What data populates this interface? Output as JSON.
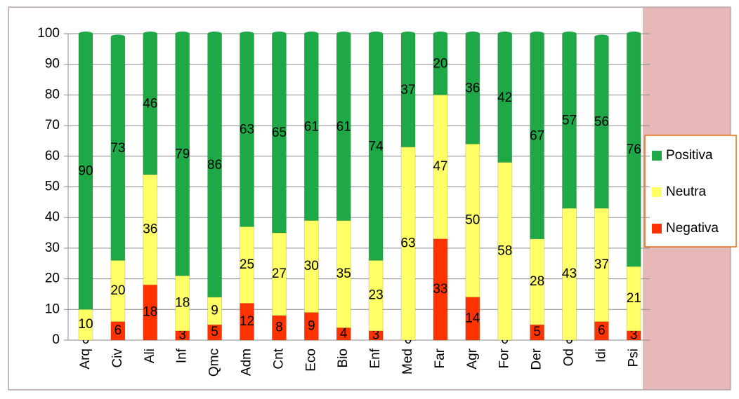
{
  "chart_data": {
    "type": "stacked_bar",
    "categories": [
      "Arq",
      "Civ",
      "Ali",
      "Inf",
      "Qmc",
      "Adm",
      "Cnt",
      "Eco",
      "Bio",
      "Enf",
      "Med",
      "Far",
      "Agr",
      "For",
      "Der",
      "Od",
      "Idi",
      "Psi"
    ],
    "series": [
      {
        "name": "Positiva",
        "color": "#1fa846",
        "values": [
          90,
          73,
          46,
          79,
          86,
          63,
          65,
          61,
          61,
          74,
          37,
          20,
          36,
          42,
          67,
          57,
          56,
          76
        ]
      },
      {
        "name": "Neutra",
        "color": "#ffff66",
        "values": [
          10,
          20,
          36,
          18,
          9,
          25,
          27,
          30,
          35,
          23,
          63,
          47,
          50,
          58,
          28,
          43,
          37,
          21
        ]
      },
      {
        "name": "Negativa",
        "color": "#ff3300",
        "values": [
          0,
          6,
          18,
          3,
          5,
          12,
          8,
          9,
          4,
          3,
          0,
          33,
          14,
          0,
          5,
          0,
          6,
          3
        ]
      }
    ],
    "ylim": [
      0,
      100
    ],
    "yticks": [
      0,
      10,
      20,
      30,
      40,
      50,
      60,
      70,
      80,
      90,
      100
    ],
    "grid": true,
    "legend": "right"
  }
}
